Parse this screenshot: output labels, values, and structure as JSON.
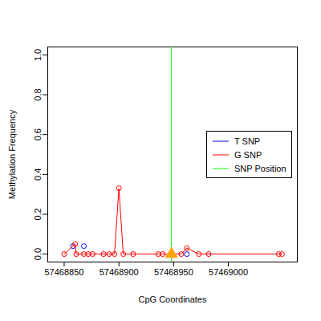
{
  "chart_data": {
    "type": "line",
    "x_label": "CpG Coordinates",
    "y_label": "Methylation Frequency",
    "xlim": [
      57468835,
      57469063
    ],
    "ylim": [
      -0.04,
      1.04
    ],
    "xticks": [
      57468850,
      57468900,
      57468950,
      57469000
    ],
    "yticks": [
      {
        "value": 0,
        "label": "0.0"
      },
      {
        "value": 0.2,
        "label": "0.2"
      },
      {
        "value": 0.4,
        "label": "0.4"
      },
      {
        "value": 0.6,
        "label": "0.6"
      },
      {
        "value": 0.8,
        "label": "0.8"
      },
      {
        "value": 1,
        "label": "1.0"
      }
    ],
    "grid": false,
    "legend": "right",
    "series": [
      {
        "name": "T SNP",
        "color": "#0000ff",
        "type": "scatter",
        "marker": "circle",
        "x": [
          57468858,
          57468868,
          57468962
        ],
        "values": [
          0.04,
          0.04,
          0
        ]
      },
      {
        "name": "G SNP",
        "color": "#ff0000",
        "type": "line",
        "marker": "circle",
        "x": [
          57468850,
          57468860,
          57468861,
          57468868,
          57468872,
          57468876,
          57468886,
          57468891,
          57468896,
          57468900,
          57468904,
          57468913,
          57468936,
          57468940,
          57468957,
          57468962,
          57468973,
          57468982,
          57469046,
          57469049
        ],
        "values": [
          0,
          0.05,
          0,
          0,
          0,
          0,
          0,
          0,
          0,
          0.33,
          0,
          0,
          0,
          0,
          0,
          0.03,
          0,
          0,
          0,
          0
        ]
      },
      {
        "name": "SNP Position",
        "color": "#00ff00",
        "type": "vline",
        "marker": "triangle",
        "x": [
          57468948
        ],
        "values": [
          0
        ]
      }
    ]
  }
}
